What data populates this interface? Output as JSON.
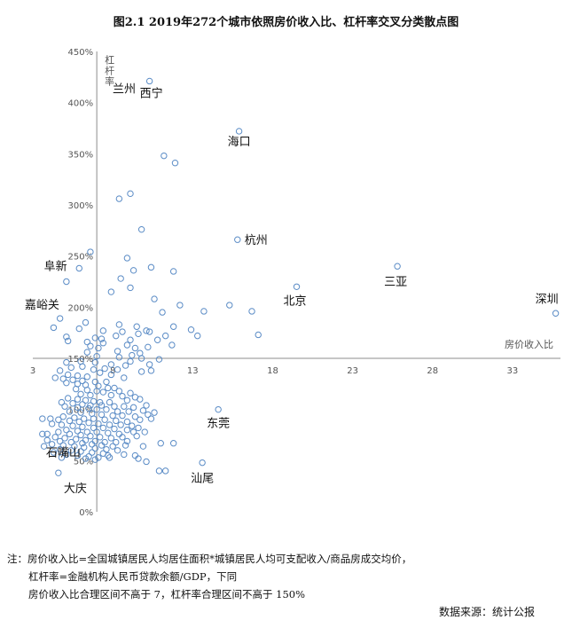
{
  "chart_data": {
    "type": "scatter",
    "title": "图2.1 2019年272个城市依照房价收入比、杠杆率交叉分类散点图",
    "xlabel": "房价收入比",
    "ylabel": "杠杆率",
    "xlim": [
      3,
      36
    ],
    "ylim": [
      0,
      450
    ],
    "x_crosses_y_at": 150,
    "y_crosses_x_at": 7,
    "x_ticks": [
      3,
      8,
      13,
      18,
      23,
      28,
      33
    ],
    "y_ticks": [
      0,
      50,
      100,
      150,
      200,
      250,
      300,
      350,
      400,
      450
    ],
    "y_tick_format": "percent",
    "grid": false,
    "legend": "none",
    "marker_color": "#5b8cc6",
    "labels": [
      {
        "text": "兰州",
        "x": 8.1,
        "y": 420
      },
      {
        "text": "西宁",
        "x": 10.3,
        "y": 420
      },
      {
        "text": "海口",
        "x": 15.9,
        "y": 372
      },
      {
        "text": "杭州",
        "x": 15.8,
        "y": 266
      },
      {
        "text": "三亚",
        "x": 25.8,
        "y": 240
      },
      {
        "text": "北京",
        "x": 19.5,
        "y": 220
      },
      {
        "text": "深圳",
        "x": 35.7,
        "y": 194
      },
      {
        "text": "阜新",
        "x": 5.2,
        "y": 224
      },
      {
        "text": "嘉峪关",
        "x": 3.8,
        "y": 188
      },
      {
        "text": "东莞",
        "x": 14.6,
        "y": 100
      },
      {
        "text": "石嘴山",
        "x": 3.6,
        "y": 70
      },
      {
        "text": "汕尾",
        "x": 13.6,
        "y": 48
      },
      {
        "text": "大庆",
        "x": 4.6,
        "y": 38
      }
    ],
    "points": [
      [
        10.3,
        421
      ],
      [
        15.9,
        372
      ],
      [
        11.2,
        348
      ],
      [
        11.9,
        341
      ],
      [
        9.1,
        311
      ],
      [
        8.4,
        306
      ],
      [
        9.8,
        276
      ],
      [
        15.8,
        266
      ],
      [
        25.8,
        240
      ],
      [
        6.6,
        254
      ],
      [
        8.9,
        248
      ],
      [
        5.9,
        238
      ],
      [
        9.3,
        236
      ],
      [
        10.4,
        239
      ],
      [
        11.8,
        235
      ],
      [
        5.1,
        225
      ],
      [
        8.5,
        228
      ],
      [
        9.1,
        219
      ],
      [
        7.9,
        215
      ],
      [
        19.5,
        220
      ],
      [
        35.7,
        194
      ],
      [
        10.6,
        208
      ],
      [
        12.2,
        202
      ],
      [
        15.3,
        202
      ],
      [
        13.7,
        196
      ],
      [
        16.7,
        196
      ],
      [
        11.1,
        195
      ],
      [
        4.7,
        189
      ],
      [
        6.3,
        185
      ],
      [
        8.4,
        183
      ],
      [
        9.5,
        181
      ],
      [
        4.3,
        180
      ],
      [
        5.9,
        179
      ],
      [
        7.4,
        177
      ],
      [
        10.1,
        177
      ],
      [
        11.8,
        181
      ],
      [
        12.9,
        178
      ],
      [
        8.6,
        176
      ],
      [
        9.6,
        174
      ],
      [
        10.3,
        176
      ],
      [
        11.3,
        172
      ],
      [
        13.3,
        172
      ],
      [
        17.1,
        173
      ],
      [
        5.1,
        171
      ],
      [
        6.9,
        170
      ],
      [
        7.3,
        169
      ],
      [
        8.2,
        172
      ],
      [
        9.1,
        168
      ],
      [
        10.8,
        168
      ],
      [
        5.2,
        167
      ],
      [
        6.4,
        166
      ],
      [
        7.4,
        165
      ],
      [
        8.9,
        163
      ],
      [
        9.4,
        160
      ],
      [
        10.2,
        161
      ],
      [
        11.7,
        163
      ],
      [
        6.6,
        162
      ],
      [
        7.1,
        160
      ],
      [
        8.3,
        157
      ],
      [
        9.2,
        153
      ],
      [
        9.7,
        155
      ],
      [
        10.9,
        149
      ],
      [
        6.4,
        156
      ],
      [
        7.0,
        152
      ],
      [
        8.4,
        151
      ],
      [
        9.1,
        147
      ],
      [
        9.8,
        150
      ],
      [
        10.3,
        144
      ],
      [
        5.1,
        146
      ],
      [
        6.0,
        147
      ],
      [
        6.9,
        146
      ],
      [
        7.9,
        144
      ],
      [
        8.8,
        143
      ],
      [
        7.5,
        140
      ],
      [
        8.3,
        139
      ],
      [
        9.8,
        137
      ],
      [
        10.4,
        138
      ],
      [
        5.4,
        141
      ],
      [
        6.1,
        142
      ],
      [
        6.8,
        139
      ],
      [
        4.7,
        138
      ],
      [
        7.2,
        136
      ],
      [
        7.9,
        134
      ],
      [
        8.7,
        131
      ],
      [
        5.2,
        134
      ],
      [
        5.8,
        133
      ],
      [
        6.4,
        132
      ],
      [
        4.4,
        131
      ],
      [
        4.9,
        130
      ],
      [
        5.5,
        129
      ],
      [
        6.1,
        128
      ],
      [
        6.9,
        127
      ],
      [
        7.6,
        127
      ],
      [
        5.1,
        126
      ],
      [
        5.8,
        125
      ],
      [
        6.3,
        124
      ],
      [
        7.1,
        123
      ],
      [
        7.7,
        121
      ],
      [
        8.1,
        121
      ],
      [
        5.7,
        120
      ],
      [
        6.4,
        119
      ],
      [
        7.0,
        118
      ],
      [
        7.4,
        117
      ],
      [
        8.4,
        118
      ],
      [
        9.1,
        116
      ],
      [
        6.0,
        115
      ],
      [
        6.6,
        114
      ],
      [
        7.9,
        114
      ],
      [
        8.6,
        113
      ],
      [
        9.4,
        112
      ],
      [
        5.2,
        111
      ],
      [
        5.8,
        110
      ],
      [
        6.3,
        109
      ],
      [
        6.8,
        108
      ],
      [
        7.2,
        107
      ],
      [
        7.8,
        107
      ],
      [
        8.9,
        109
      ],
      [
        9.7,
        110
      ],
      [
        4.8,
        107
      ],
      [
        5.5,
        106
      ],
      [
        6.1,
        105
      ],
      [
        6.6,
        104
      ],
      [
        7.3,
        104
      ],
      [
        8.1,
        103
      ],
      [
        8.7,
        103
      ],
      [
        9.3,
        102
      ],
      [
        10.1,
        104
      ],
      [
        5.0,
        103
      ],
      [
        5.8,
        102
      ],
      [
        6.5,
        101
      ],
      [
        7.0,
        100
      ],
      [
        7.6,
        100
      ],
      [
        8.3,
        98
      ],
      [
        9.0,
        98
      ],
      [
        9.9,
        99
      ],
      [
        10.6,
        97
      ],
      [
        5.3,
        98
      ],
      [
        6.0,
        97
      ],
      [
        6.7,
        96
      ],
      [
        7.3,
        95
      ],
      [
        8.0,
        94
      ],
      [
        8.6,
        94
      ],
      [
        9.4,
        93
      ],
      [
        10.2,
        95
      ],
      [
        14.6,
        100
      ],
      [
        4.9,
        93
      ],
      [
        5.6,
        92
      ],
      [
        6.2,
        91
      ],
      [
        6.8,
        91
      ],
      [
        7.5,
        90
      ],
      [
        8.2,
        89
      ],
      [
        8.9,
        88
      ],
      [
        9.7,
        90
      ],
      [
        10.4,
        91
      ],
      [
        5.3,
        89
      ],
      [
        5.9,
        88
      ],
      [
        6.5,
        87
      ],
      [
        7.1,
        86
      ],
      [
        7.8,
        85
      ],
      [
        8.5,
        85
      ],
      [
        9.2,
        84
      ],
      [
        4.2,
        86
      ],
      [
        4.8,
        85
      ],
      [
        5.5,
        84
      ],
      [
        6.1,
        83
      ],
      [
        6.8,
        82
      ],
      [
        7.4,
        82
      ],
      [
        8.1,
        81
      ],
      [
        8.9,
        80
      ],
      [
        9.6,
        82
      ],
      [
        3.6,
        91
      ],
      [
        4.1,
        91
      ],
      [
        4.6,
        90
      ],
      [
        5.1,
        80
      ],
      [
        5.8,
        79
      ],
      [
        6.4,
        78
      ],
      [
        7.0,
        78
      ],
      [
        7.7,
        77
      ],
      [
        8.4,
        76
      ],
      [
        9.3,
        78
      ],
      [
        10.0,
        78
      ],
      [
        4.6,
        78
      ],
      [
        5.3,
        76
      ],
      [
        6.0,
        75
      ],
      [
        6.6,
        74
      ],
      [
        7.2,
        73
      ],
      [
        7.9,
        72
      ],
      [
        8.6,
        73
      ],
      [
        9.5,
        74
      ],
      [
        4.4,
        73
      ],
      [
        5.0,
        72
      ],
      [
        5.7,
        71
      ],
      [
        6.3,
        70
      ],
      [
        6.9,
        69
      ],
      [
        7.5,
        68
      ],
      [
        8.2,
        68
      ],
      [
        8.9,
        69
      ],
      [
        3.9,
        70
      ],
      [
        4.7,
        69
      ],
      [
        5.4,
        68
      ],
      [
        6.1,
        67
      ],
      [
        6.7,
        66
      ],
      [
        7.3,
        65
      ],
      [
        8.0,
        64
      ],
      [
        8.8,
        65
      ],
      [
        9.9,
        64
      ],
      [
        4.2,
        66
      ],
      [
        4.9,
        65
      ],
      [
        5.6,
        64
      ],
      [
        6.2,
        63
      ],
      [
        6.9,
        62
      ],
      [
        7.6,
        61
      ],
      [
        8.3,
        60
      ],
      [
        11.0,
        67
      ],
      [
        11.8,
        67
      ],
      [
        4.7,
        61
      ],
      [
        5.4,
        60
      ],
      [
        6.0,
        59
      ],
      [
        6.7,
        58
      ],
      [
        7.4,
        57
      ],
      [
        3.7,
        64
      ],
      [
        4.3,
        58
      ],
      [
        5.1,
        56
      ],
      [
        5.8,
        55
      ],
      [
        6.5,
        54
      ],
      [
        7.1,
        53
      ],
      [
        7.8,
        53
      ],
      [
        4.8,
        53
      ],
      [
        6.3,
        52
      ],
      [
        6.9,
        51
      ],
      [
        7.7,
        55
      ],
      [
        8.7,
        56
      ],
      [
        9.4,
        55
      ],
      [
        10.1,
        49
      ],
      [
        13.6,
        48
      ],
      [
        10.9,
        40
      ],
      [
        11.3,
        40
      ],
      [
        4.6,
        38
      ],
      [
        3.6,
        76
      ],
      [
        3.9,
        76
      ],
      [
        9.6,
        52
      ]
    ]
  },
  "notes": [
    "注：房价收入比=全国城镇居民人均居住面积*城镇居民人均可支配收入/商品房成交均价，",
    "杠杆率=金融机构人民币贷款余额/GDP，下同",
    "房价收入比合理区间不高于 7，杠杆率合理区间不高于 150%"
  ],
  "source": "数据来源：统计公报"
}
